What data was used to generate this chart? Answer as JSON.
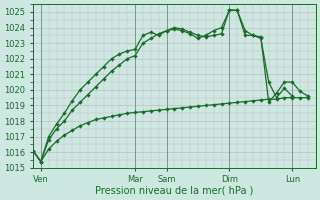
{
  "xlabel": "Pression niveau de la mer( hPa )",
  "ylim": [
    1015,
    1025.5
  ],
  "xlim": [
    0,
    36
  ],
  "bg_color": "#cce8e0",
  "grid_color": "#c8b8c8",
  "line_color": "#1a6b2a",
  "tick_color": "#1a6b2a",
  "xtick_positions": [
    1,
    13,
    17,
    25,
    33
  ],
  "xtick_labels": [
    "Ven",
    "Mar",
    "Sam",
    "Dim",
    "Lun"
  ],
  "ytick_positions": [
    1015,
    1016,
    1017,
    1018,
    1019,
    1020,
    1021,
    1022,
    1023,
    1024,
    1025
  ],
  "vlines_x": [
    1,
    13,
    17,
    25,
    33
  ],
  "series1_x": [
    0,
    1,
    2,
    3,
    4,
    5,
    6,
    7,
    8,
    9,
    10,
    11,
    12,
    13,
    14,
    15,
    16,
    17,
    18,
    19,
    20,
    21,
    22,
    23,
    24,
    25,
    26,
    27,
    28,
    29,
    30,
    31,
    32,
    33,
    34,
    35
  ],
  "series1_y": [
    1016.1,
    1015.4,
    1016.2,
    1016.7,
    1017.1,
    1017.4,
    1017.7,
    1017.9,
    1018.1,
    1018.2,
    1018.3,
    1018.4,
    1018.5,
    1018.55,
    1018.6,
    1018.65,
    1018.7,
    1018.75,
    1018.8,
    1018.85,
    1018.9,
    1018.95,
    1019.0,
    1019.05,
    1019.1,
    1019.15,
    1019.2,
    1019.25,
    1019.3,
    1019.35,
    1019.4,
    1019.4,
    1019.5,
    1019.5,
    1019.5,
    1019.5
  ],
  "series2_x": [
    0,
    1,
    2,
    3,
    4,
    5,
    6,
    7,
    8,
    9,
    10,
    11,
    12,
    13,
    14,
    15,
    16,
    17,
    18,
    19,
    20,
    21,
    22,
    23,
    24,
    25,
    26,
    27,
    28,
    29,
    30,
    31,
    32,
    33
  ],
  "series2_y": [
    1016.1,
    1015.4,
    1017.0,
    1017.8,
    1018.5,
    1019.3,
    1020.0,
    1020.5,
    1021.0,
    1021.5,
    1022.0,
    1022.3,
    1022.5,
    1022.6,
    1023.5,
    1023.7,
    1023.5,
    1023.8,
    1023.9,
    1023.8,
    1023.6,
    1023.3,
    1023.5,
    1023.8,
    1024.0,
    1025.1,
    1025.1,
    1023.5,
    1023.5,
    1023.3,
    1020.5,
    1019.5,
    1020.1,
    1019.6
  ],
  "series3_x": [
    0,
    1,
    2,
    3,
    4,
    5,
    6,
    7,
    8,
    9,
    10,
    11,
    12,
    13,
    14,
    15,
    16,
    17,
    18,
    19,
    20,
    21,
    22,
    23,
    24,
    25,
    26,
    27,
    28,
    29,
    30,
    31,
    32,
    33,
    34,
    35
  ],
  "series3_y": [
    1016.1,
    1015.4,
    1016.8,
    1017.5,
    1018.0,
    1018.7,
    1019.2,
    1019.7,
    1020.2,
    1020.7,
    1021.2,
    1021.6,
    1022.0,
    1022.2,
    1023.0,
    1023.3,
    1023.6,
    1023.8,
    1024.0,
    1023.9,
    1023.7,
    1023.5,
    1023.4,
    1023.5,
    1023.6,
    1025.15,
    1025.1,
    1023.8,
    1023.5,
    1023.4,
    1019.2,
    1019.8,
    1020.5,
    1020.5,
    1019.9,
    1019.6
  ],
  "markersize": 2.2,
  "linewidth": 0.9
}
